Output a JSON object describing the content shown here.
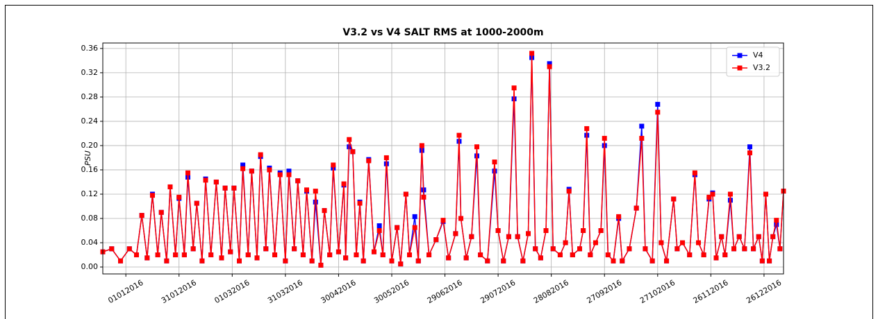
{
  "chart_data": {
    "type": "line",
    "title": "V3.2 vs V4 SALT RMS at 1000-2000m",
    "y_label": "PSU",
    "x": [
      -13,
      -8,
      -3,
      2,
      6,
      9,
      12,
      15,
      18,
      20,
      23,
      25,
      28,
      30,
      33,
      35,
      38,
      40,
      43,
      45,
      48,
      51,
      54,
      56,
      59,
      61,
      64,
      66,
      69,
      71,
      74,
      76,
      79,
      81,
      84,
      87,
      90,
      92,
      95,
      97,
      100,
      102,
      105,
      107,
      110,
      112,
      115,
      117,
      120,
      123,
      124,
      126,
      128,
      130,
      132,
      134,
      137,
      140,
      143,
      145,
      147,
      150,
      153,
      155,
      158,
      160,
      163,
      165,
      167,
      168,
      171,
      175,
      179,
      182,
      186,
      188,
      189,
      192,
      195,
      198,
      200,
      204,
      208,
      210,
      213,
      216,
      219,
      221,
      224,
      227,
      229,
      231,
      234,
      237,
      239,
      241,
      245,
      248,
      250,
      252,
      256,
      258,
      260,
      262,
      265,
      268,
      270,
      272,
      275,
      278,
      280,
      284,
      288,
      291,
      293,
      297,
      300,
      302,
      305,
      309,
      311,
      314,
      318,
      321,
      323,
      326,
      329,
      331,
      333,
      336,
      338,
      341,
      343,
      346,
      349,
      352,
      354,
      357,
      359,
      361,
      363,
      365,
      367,
      369,
      371
    ],
    "series": [
      {
        "name": "V4",
        "color": "#0000ff",
        "values": [
          0.025,
          0.03,
          0.01,
          0.03,
          0.02,
          0.085,
          0.015,
          0.12,
          0.02,
          0.09,
          0.01,
          0.132,
          0.02,
          0.113,
          0.02,
          0.148,
          0.03,
          0.105,
          0.01,
          0.145,
          0.02,
          0.14,
          0.015,
          0.13,
          0.025,
          0.13,
          0.01,
          0.168,
          0.02,
          0.158,
          0.015,
          0.182,
          0.03,
          0.163,
          0.02,
          0.155,
          0.01,
          0.158,
          0.03,
          0.142,
          0.02,
          0.125,
          0.01,
          0.107,
          0.003,
          0.093,
          0.02,
          0.163,
          0.025,
          0.135,
          0.015,
          0.198,
          0.19,
          0.02,
          0.107,
          0.01,
          0.177,
          0.025,
          0.068,
          0.02,
          0.17,
          0.01,
          0.065,
          0.005,
          0.12,
          0.02,
          0.083,
          0.01,
          0.192,
          0.127,
          0.02,
          0.045,
          0.075,
          0.015,
          0.055,
          0.207,
          0.08,
          0.015,
          0.05,
          0.183,
          0.02,
          0.01,
          0.158,
          0.06,
          0.01,
          0.05,
          0.277,
          0.05,
          0.01,
          0.055,
          0.345,
          0.03,
          0.015,
          0.06,
          0.335,
          0.03,
          0.02,
          0.04,
          0.128,
          0.02,
          0.03,
          0.06,
          0.217,
          0.02,
          0.04,
          0.06,
          0.2,
          0.02,
          0.01,
          0.08,
          0.01,
          0.03,
          0.097,
          0.232,
          0.03,
          0.01,
          0.268,
          0.04,
          0.01,
          0.112,
          0.03,
          0.04,
          0.02,
          0.152,
          0.04,
          0.02,
          0.112,
          0.122,
          0.015,
          0.05,
          0.02,
          0.11,
          0.03,
          0.05,
          0.03,
          0.198,
          0.03,
          0.05,
          0.01,
          0.12,
          0.01,
          0.05,
          0.07,
          0.03,
          0.125
        ]
      },
      {
        "name": "V3.2",
        "color": "#ff0000",
        "values": [
          0.025,
          0.03,
          0.01,
          0.03,
          0.02,
          0.085,
          0.015,
          0.118,
          0.02,
          0.09,
          0.01,
          0.132,
          0.02,
          0.115,
          0.02,
          0.155,
          0.03,
          0.105,
          0.01,
          0.143,
          0.02,
          0.14,
          0.015,
          0.13,
          0.025,
          0.13,
          0.01,
          0.162,
          0.02,
          0.158,
          0.015,
          0.185,
          0.03,
          0.16,
          0.02,
          0.152,
          0.01,
          0.152,
          0.03,
          0.142,
          0.02,
          0.127,
          0.01,
          0.125,
          0.003,
          0.093,
          0.02,
          0.168,
          0.025,
          0.137,
          0.015,
          0.21,
          0.19,
          0.02,
          0.105,
          0.01,
          0.175,
          0.025,
          0.06,
          0.02,
          0.18,
          0.01,
          0.065,
          0.005,
          0.12,
          0.02,
          0.065,
          0.01,
          0.2,
          0.115,
          0.02,
          0.045,
          0.077,
          0.015,
          0.055,
          0.217,
          0.08,
          0.015,
          0.05,
          0.198,
          0.02,
          0.01,
          0.173,
          0.06,
          0.01,
          0.05,
          0.295,
          0.05,
          0.01,
          0.055,
          0.352,
          0.03,
          0.015,
          0.06,
          0.33,
          0.03,
          0.02,
          0.04,
          0.125,
          0.02,
          0.03,
          0.06,
          0.228,
          0.02,
          0.04,
          0.06,
          0.212,
          0.02,
          0.01,
          0.083,
          0.01,
          0.03,
          0.097,
          0.212,
          0.03,
          0.01,
          0.255,
          0.04,
          0.01,
          0.112,
          0.03,
          0.04,
          0.02,
          0.155,
          0.04,
          0.02,
          0.115,
          0.12,
          0.015,
          0.05,
          0.02,
          0.12,
          0.03,
          0.05,
          0.03,
          0.188,
          0.03,
          0.05,
          0.01,
          0.12,
          0.01,
          0.05,
          0.077,
          0.03,
          0.125
        ]
      }
    ],
    "xlim": [
      -13,
      371
    ],
    "xticks": [
      {
        "value": 0,
        "label": "01012016"
      },
      {
        "value": 30,
        "label": "31012016"
      },
      {
        "value": 60,
        "label": "01032016"
      },
      {
        "value": 90,
        "label": "31032016"
      },
      {
        "value": 120,
        "label": "30042016"
      },
      {
        "value": 150,
        "label": "30052016"
      },
      {
        "value": 180,
        "label": "29062016"
      },
      {
        "value": 210,
        "label": "29072016"
      },
      {
        "value": 240,
        "label": "28082016"
      },
      {
        "value": 270,
        "label": "27092016"
      },
      {
        "value": 300,
        "label": "27102016"
      },
      {
        "value": 330,
        "label": "26112016"
      },
      {
        "value": 360,
        "label": "26122016"
      }
    ],
    "ylim": [
      -0.0114,
      0.369
    ],
    "yticks": [
      {
        "value": 0,
        "label": "0.00"
      },
      {
        "value": 0.04,
        "label": "0.04"
      },
      {
        "value": 0.08,
        "label": "0.08"
      },
      {
        "value": 0.12,
        "label": "0.12"
      },
      {
        "value": 0.16,
        "label": "0.16"
      },
      {
        "value": 0.2,
        "label": "0.20"
      },
      {
        "value": 0.24,
        "label": "0.24"
      },
      {
        "value": 0.28,
        "label": "0.28"
      },
      {
        "value": 0.32,
        "label": "0.32"
      },
      {
        "value": 0.36,
        "label": "0.36"
      }
    ],
    "grid": true,
    "legend": "upper right",
    "marker": "square"
  }
}
